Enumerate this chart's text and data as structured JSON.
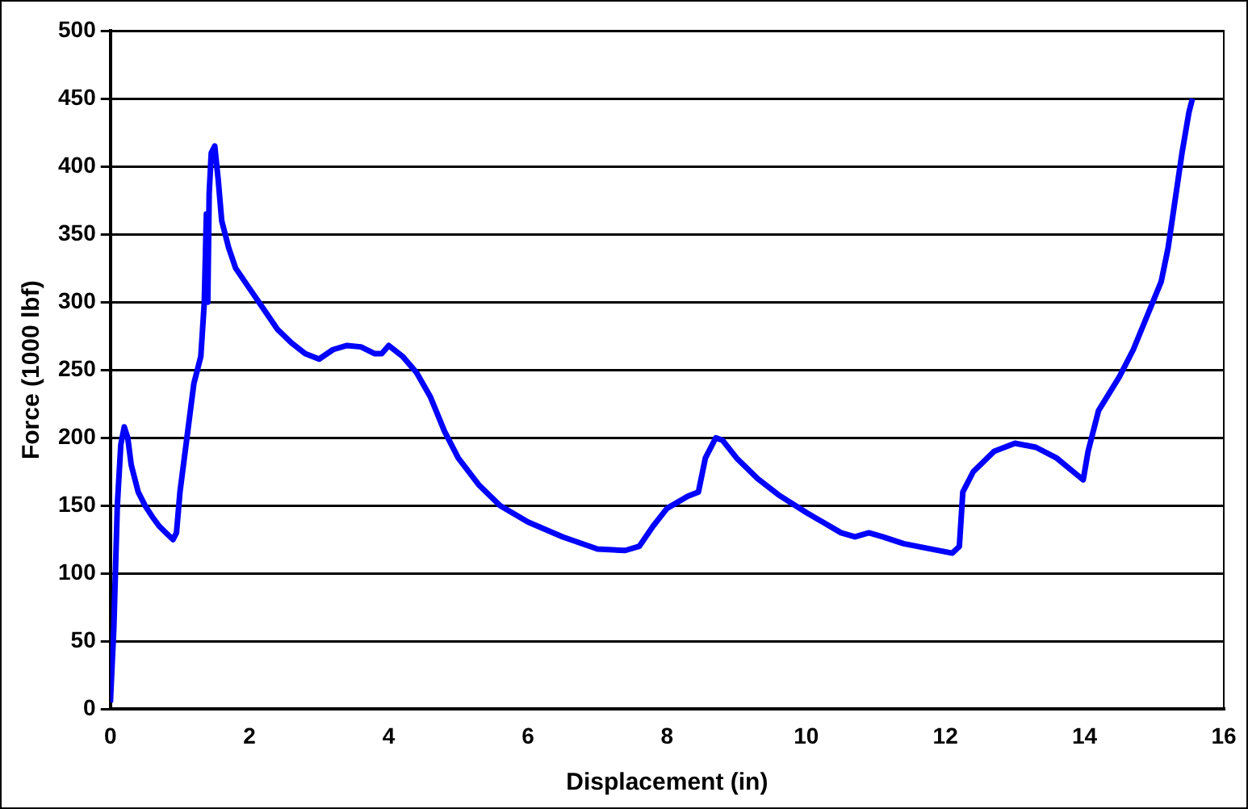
{
  "chart_data": {
    "type": "line",
    "xlabel": "Displacement (in)",
    "ylabel": "Force (1000 lbf)",
    "xlim": [
      0,
      16
    ],
    "xticks": [
      0,
      2,
      4,
      6,
      8,
      10,
      12,
      14,
      16
    ],
    "ylim": [
      0,
      500
    ],
    "yticks": [
      0,
      50,
      100,
      150,
      200,
      250,
      300,
      350,
      400,
      450,
      500
    ],
    "grid": "y",
    "legend": false,
    "series": [
      {
        "color": "#0000ff",
        "x": [
          0,
          0.05,
          0.1,
          0.15,
          0.2,
          0.25,
          0.3,
          0.4,
          0.5,
          0.6,
          0.7,
          0.8,
          0.9,
          0.95,
          1.0,
          1.1,
          1.2,
          1.3,
          1.35,
          1.38,
          1.4,
          1.42,
          1.45,
          1.5,
          1.55,
          1.6,
          1.7,
          1.8,
          2.0,
          2.2,
          2.4,
          2.6,
          2.8,
          3.0,
          3.2,
          3.4,
          3.6,
          3.8,
          3.9,
          4.0,
          4.2,
          4.4,
          4.6,
          4.8,
          5.0,
          5.3,
          5.6,
          6.0,
          6.5,
          7.0,
          7.4,
          7.6,
          7.8,
          8.0,
          8.3,
          8.45,
          8.55,
          8.7,
          8.8,
          9.0,
          9.3,
          9.6,
          10.0,
          10.5,
          10.7,
          10.9,
          11.1,
          11.4,
          11.8,
          12.1,
          12.2,
          12.25,
          12.4,
          12.7,
          13.0,
          13.3,
          13.6,
          13.98,
          14.05,
          14.2,
          14.5,
          14.7,
          14.9,
          15.1,
          15.2,
          15.3,
          15.4,
          15.5,
          15.55
        ],
        "values": [
          5,
          60,
          150,
          195,
          208,
          200,
          180,
          160,
          150,
          142,
          135,
          130,
          125,
          130,
          160,
          200,
          240,
          260,
          300,
          365,
          300,
          380,
          410,
          415,
          390,
          360,
          340,
          325,
          310,
          295,
          280,
          270,
          262,
          258,
          265,
          268,
          267,
          262,
          262,
          268,
          260,
          248,
          230,
          205,
          185,
          165,
          150,
          138,
          127,
          118,
          117,
          120,
          135,
          148,
          157,
          160,
          185,
          200,
          198,
          185,
          170,
          158,
          145,
          130,
          127,
          130,
          127,
          122,
          118,
          115,
          120,
          160,
          175,
          190,
          196,
          193,
          185,
          169,
          190,
          220,
          245,
          265,
          290,
          315,
          340,
          375,
          410,
          440,
          450
        ]
      }
    ]
  }
}
